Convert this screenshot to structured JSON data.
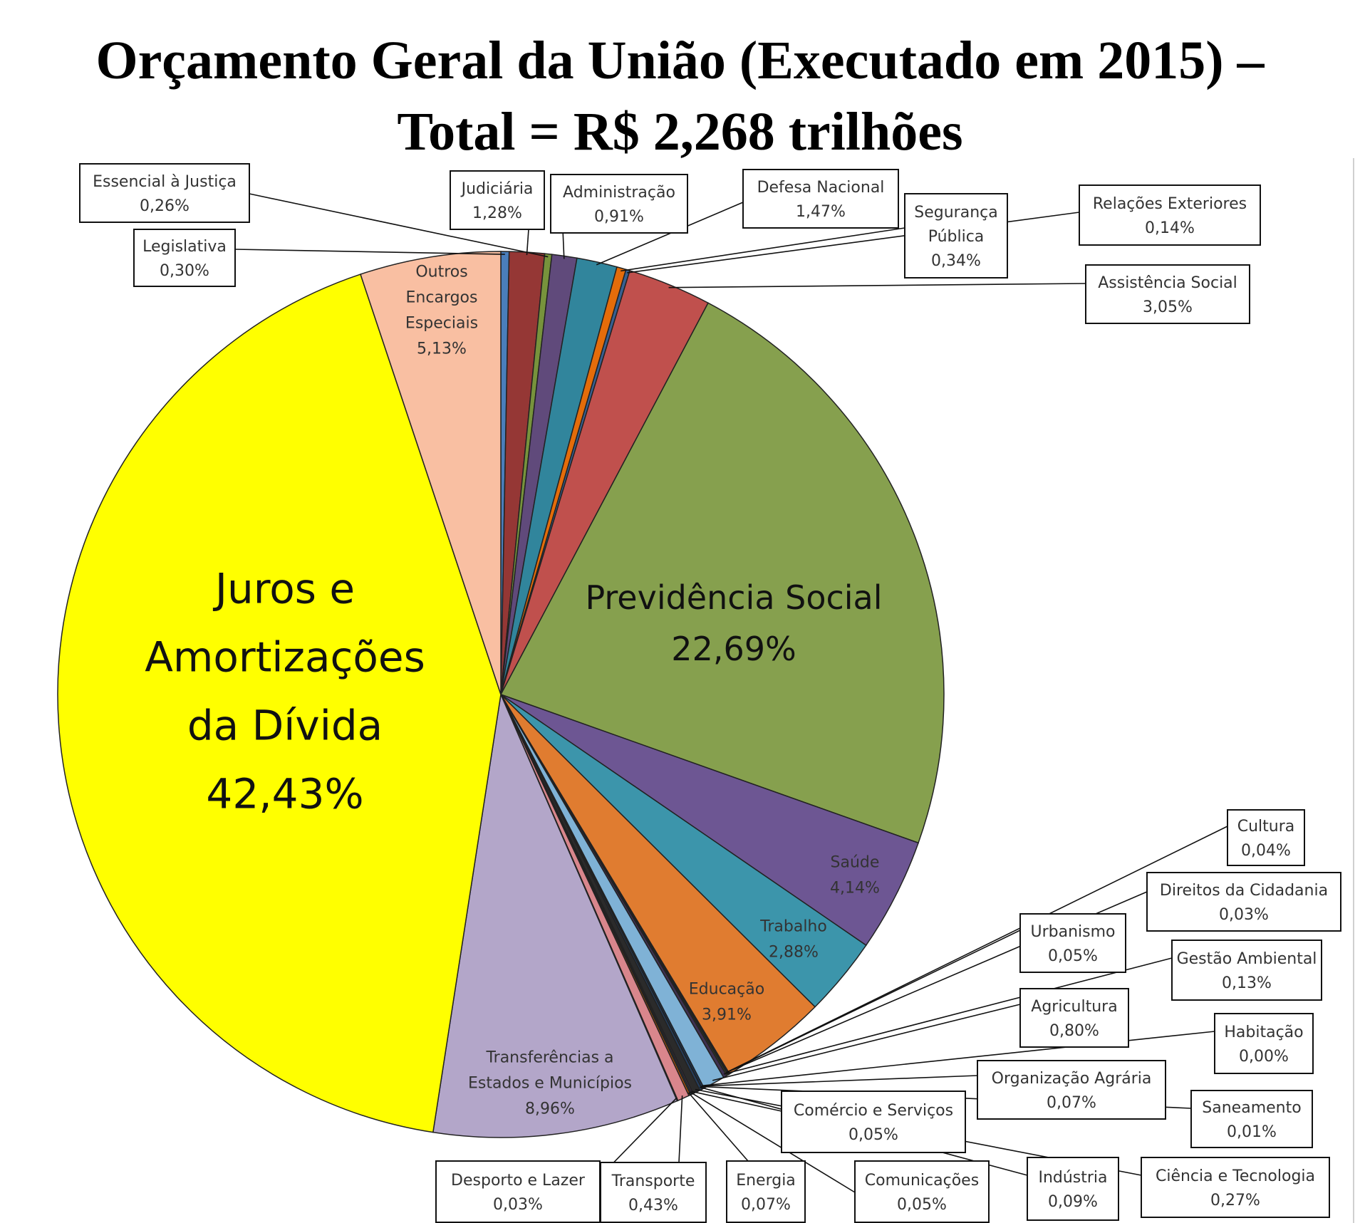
{
  "header": {
    "title_line1": "Orçamento Geral da União (Executado em 2015) –",
    "title_line2": "Total = R$ 2,268 trilhões"
  },
  "chart_data": {
    "type": "pie",
    "title": "Orçamento Geral da União (Executado em 2015) – Total = R$ 2,268 trilhões",
    "slices": [
      {
        "name": "Legislativa",
        "value": 0.3,
        "label": "0,30%",
        "color": "#4a7ebb"
      },
      {
        "name": "Judiciária",
        "value": 1.28,
        "label": "1,28%",
        "color": "#953735"
      },
      {
        "name": "Essencial à Justiça",
        "value": 0.26,
        "label": "0,26%",
        "color": "#77933c"
      },
      {
        "name": "Administração",
        "value": 0.91,
        "label": "0,91%",
        "color": "#604a7b"
      },
      {
        "name": "Defesa Nacional",
        "value": 1.47,
        "label": "1,47%",
        "color": "#31859c"
      },
      {
        "name": "Segurança Pública",
        "value": 0.34,
        "label": "0,34%",
        "color": "#e46c0a"
      },
      {
        "name": "Relações Exteriores",
        "value": 0.14,
        "label": "0,14%",
        "color": "#376092"
      },
      {
        "name": "Assistência Social",
        "value": 3.05,
        "label": "3,05%",
        "color": "#c0504d"
      },
      {
        "name": "Previdência Social",
        "value": 22.69,
        "label": "22,69%",
        "color": "#86a04e"
      },
      {
        "name": "Saúde",
        "value": 4.14,
        "label": "4,14%",
        "color": "#6d5693"
      },
      {
        "name": "Trabalho",
        "value": 2.88,
        "label": "2,88%",
        "color": "#3c95ab"
      },
      {
        "name": "Educação",
        "value": 3.91,
        "label": "3,91%",
        "color": "#e07c30"
      },
      {
        "name": "Cultura",
        "value": 0.04,
        "label": "0,04%",
        "color": "#1f3a60"
      },
      {
        "name": "Direitos da Cidadania",
        "value": 0.03,
        "label": "0,03%",
        "color": "#632523"
      },
      {
        "name": "Urbanismo",
        "value": 0.05,
        "label": "0,05%",
        "color": "#4f6228"
      },
      {
        "name": "Gestão Ambiental",
        "value": 0.13,
        "label": "0,13%",
        "color": "#3f3151"
      },
      {
        "name": "Agricultura",
        "value": 0.8,
        "label": "0,80%",
        "color": "#7fb2d6"
      },
      {
        "name": "Habitação",
        "value": 0.0,
        "label": "0,00%",
        "color": "#974806"
      },
      {
        "name": "Organização Agrária",
        "value": 0.07,
        "label": "0,07%",
        "color": "#17375e"
      },
      {
        "name": "Saneamento",
        "value": 0.01,
        "label": "0,01%",
        "color": "#8a3836"
      },
      {
        "name": "Indústria",
        "value": 0.09,
        "label": "0,09%",
        "color": "#243f60"
      },
      {
        "name": "Ciência e Tecnologia",
        "value": 0.27,
        "label": "0,27%",
        "color": "#2b2b2b"
      },
      {
        "name": "Comércio e Serviços",
        "value": 0.05,
        "label": "0,05%",
        "color": "#5e3f7a"
      },
      {
        "name": "Comunicações",
        "value": 0.05,
        "label": "0,05%",
        "color": "#205867"
      },
      {
        "name": "Energia",
        "value": 0.07,
        "label": "0,07%",
        "color": "#b65708"
      },
      {
        "name": "Transporte",
        "value": 0.43,
        "label": "0,43%",
        "color": "#d9868c"
      },
      {
        "name": "Desporto e Lazer",
        "value": 0.03,
        "label": "0,03%",
        "color": "#a0a0a0"
      },
      {
        "name": "Transferências a Estados e Municípios",
        "value": 8.96,
        "label": "8,96%",
        "color": "#b3a6c9"
      },
      {
        "name": "Juros e Amortizações da Dívida",
        "value": 42.43,
        "label": "42,43%",
        "color": "#ffff00"
      },
      {
        "name": "Outros Encargos Especiais",
        "value": 5.13,
        "label": "5,13%",
        "color": "#f9bfa2"
      }
    ],
    "inside_labels": [
      {
        "slice": "Juros e Amortizações da Dívida",
        "lines": [
          "Juros e",
          "Amortizações",
          "da Dívida",
          "42,43%"
        ]
      },
      {
        "slice": "Previdência Social",
        "lines": [
          "Previdência Social",
          "22,69%"
        ]
      },
      {
        "slice": "Outros Encargos Especiais",
        "lines": [
          "Outros",
          "Encargos",
          "Especiais",
          "5,13%"
        ]
      },
      {
        "slice": "Transferências a Estados e Municípios",
        "lines": [
          "Transferências a",
          "Estados e Municípios",
          "8,96%"
        ]
      },
      {
        "slice": "Saúde",
        "lines": [
          "Saúde",
          "4,14%"
        ]
      },
      {
        "slice": "Trabalho",
        "lines": [
          "Trabalho",
          "2,88%"
        ]
      },
      {
        "slice": "Educação",
        "lines": [
          "Educação",
          "3,91%"
        ]
      }
    ],
    "callouts": [
      {
        "slice": "Essencial à Justiça",
        "lines": [
          "Essencial à Justiça",
          "0,26%"
        ]
      },
      {
        "slice": "Legislativa",
        "lines": [
          "Legislativa",
          "0,30%"
        ]
      },
      {
        "slice": "Judiciária",
        "lines": [
          "Judiciária",
          "1,28%"
        ]
      },
      {
        "slice": "Administração",
        "lines": [
          "Administração",
          "0,91%"
        ]
      },
      {
        "slice": "Defesa Nacional",
        "lines": [
          "Defesa Nacional",
          "1,47%"
        ]
      },
      {
        "slice": "Segurança Pública",
        "lines": [
          "Segurança",
          "Pública",
          "0,34%"
        ]
      },
      {
        "slice": "Relações Exteriores",
        "lines": [
          "Relações Exteriores",
          "0,14%"
        ]
      },
      {
        "slice": "Assistência Social",
        "lines": [
          "Assistência Social",
          "3,05%"
        ]
      },
      {
        "slice": "Cultura",
        "lines": [
          "Cultura",
          "0,04%"
        ]
      },
      {
        "slice": "Direitos da Cidadania",
        "lines": [
          "Direitos da Cidadania",
          "0,03%"
        ]
      },
      {
        "slice": "Urbanismo",
        "lines": [
          "Urbanismo",
          "0,05%"
        ]
      },
      {
        "slice": "Gestão Ambiental",
        "lines": [
          "Gestão Ambiental",
          "0,13%"
        ]
      },
      {
        "slice": "Agricultura",
        "lines": [
          "Agricultura",
          "0,80%"
        ]
      },
      {
        "slice": "Habitação",
        "lines": [
          "Habitação",
          "0,00%"
        ]
      },
      {
        "slice": "Organização Agrária",
        "lines": [
          "Organização Agrária",
          "0,07%"
        ]
      },
      {
        "slice": "Saneamento",
        "lines": [
          "Saneamento",
          "0,01%"
        ]
      },
      {
        "slice": "Comércio e Serviços",
        "lines": [
          "Comércio e Serviços",
          "0,05%"
        ]
      },
      {
        "slice": "Indústria",
        "lines": [
          "Indústria",
          "0,09%"
        ]
      },
      {
        "slice": "Ciência e Tecnologia",
        "lines": [
          "Ciência e Tecnologia",
          "0,27%"
        ]
      },
      {
        "slice": "Desporto e Lazer",
        "lines": [
          "Desporto e Lazer",
          "0,03%"
        ]
      },
      {
        "slice": "Transporte",
        "lines": [
          "Transporte",
          "0,43%"
        ]
      },
      {
        "slice": "Energia",
        "lines": [
          "Energia",
          "0,07%"
        ]
      },
      {
        "slice": "Comunicações",
        "lines": [
          "Comunicações",
          "0,05%"
        ]
      }
    ]
  }
}
